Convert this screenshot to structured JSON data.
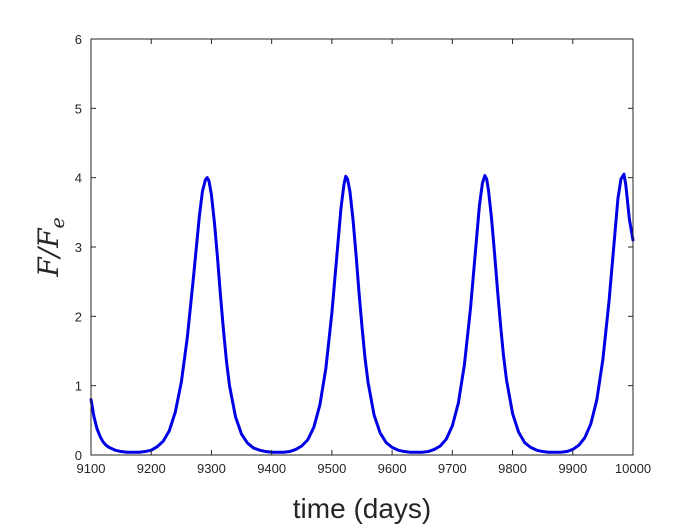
{
  "chart_data": {
    "type": "line",
    "title": "",
    "xlabel": "time (days)",
    "ylabel": {
      "main": "F/F",
      "sub": "e"
    },
    "xlim": [
      9100,
      10000
    ],
    "ylim": [
      0,
      6
    ],
    "xticks": [
      9100,
      9200,
      9300,
      9400,
      9500,
      9600,
      9700,
      9800,
      9900,
      10000
    ],
    "yticks": [
      0,
      1,
      2,
      3,
      4,
      5,
      6
    ],
    "grid": false,
    "line_color": "#0000e6",
    "series": [
      {
        "x": [
          9100,
          9105,
          9110,
          9115,
          9120,
          9125,
          9130,
          9140,
          9150,
          9160,
          9170,
          9180,
          9190,
          9200,
          9210,
          9220,
          9230,
          9240,
          9250,
          9260,
          9270,
          9275,
          9280,
          9285,
          9290,
          9293,
          9296,
          9300,
          9305,
          9310,
          9315,
          9320,
          9325,
          9330,
          9340,
          9350,
          9360,
          9370,
          9380,
          9390,
          9400,
          9410,
          9420,
          9430,
          9440,
          9450,
          9460,
          9470,
          9480,
          9490,
          9500,
          9505,
          9510,
          9515,
          9520,
          9523,
          9526,
          9530,
          9535,
          9540,
          9545,
          9550,
          9555,
          9560,
          9570,
          9580,
          9590,
          9600,
          9610,
          9620,
          9630,
          9640,
          9650,
          9660,
          9670,
          9680,
          9690,
          9700,
          9710,
          9720,
          9730,
          9735,
          9740,
          9745,
          9750,
          9754,
          9757,
          9760,
          9765,
          9770,
          9775,
          9780,
          9785,
          9790,
          9800,
          9810,
          9820,
          9830,
          9840,
          9850,
          9860,
          9870,
          9880,
          9890,
          9900,
          9910,
          9920,
          9930,
          9940,
          9950,
          9960,
          9965,
          9970,
          9975,
          9980,
          9985,
          9988,
          9991,
          9994,
          9997,
          10000
        ],
        "y": [
          0.8,
          0.55,
          0.38,
          0.27,
          0.19,
          0.14,
          0.11,
          0.07,
          0.05,
          0.04,
          0.04,
          0.04,
          0.05,
          0.07,
          0.12,
          0.2,
          0.35,
          0.62,
          1.05,
          1.7,
          2.55,
          3.0,
          3.45,
          3.8,
          3.97,
          4.0,
          3.95,
          3.75,
          3.35,
          2.85,
          2.3,
          1.8,
          1.35,
          1.0,
          0.55,
          0.3,
          0.17,
          0.1,
          0.07,
          0.05,
          0.04,
          0.04,
          0.04,
          0.05,
          0.08,
          0.13,
          0.22,
          0.4,
          0.72,
          1.25,
          2.05,
          2.55,
          3.05,
          3.55,
          3.9,
          4.02,
          3.98,
          3.8,
          3.4,
          2.9,
          2.35,
          1.85,
          1.4,
          1.05,
          0.58,
          0.32,
          0.18,
          0.11,
          0.07,
          0.05,
          0.04,
          0.04,
          0.04,
          0.05,
          0.08,
          0.13,
          0.23,
          0.42,
          0.75,
          1.3,
          2.1,
          2.6,
          3.1,
          3.6,
          3.92,
          4.03,
          3.98,
          3.82,
          3.42,
          2.92,
          2.38,
          1.88,
          1.43,
          1.08,
          0.6,
          0.33,
          0.18,
          0.11,
          0.07,
          0.05,
          0.04,
          0.04,
          0.04,
          0.05,
          0.08,
          0.14,
          0.25,
          0.45,
          0.8,
          1.38,
          2.2,
          2.7,
          3.2,
          3.7,
          3.98,
          4.05,
          3.9,
          3.65,
          3.4,
          3.25,
          3.1
        ]
      }
    ]
  }
}
